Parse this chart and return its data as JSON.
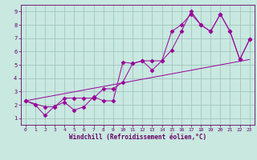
{
  "xlabel": "Windchill (Refroidissement éolien,°C)",
  "bg_color": "#c8e8e0",
  "grid_color": "#9bbfb8",
  "line_color": "#990099",
  "axis_label_color": "#660066",
  "tick_color": "#660066",
  "xlim": [
    -0.5,
    23.5
  ],
  "ylim": [
    0.5,
    9.5
  ],
  "xticks": [
    0,
    1,
    2,
    3,
    4,
    5,
    6,
    7,
    8,
    9,
    10,
    11,
    12,
    13,
    14,
    15,
    16,
    17,
    18,
    19,
    20,
    21,
    22,
    23
  ],
  "yticks": [
    1,
    2,
    3,
    4,
    5,
    6,
    7,
    8,
    9
  ],
  "line1_x": [
    0,
    1,
    2,
    3,
    4,
    5,
    6,
    7,
    8,
    9,
    10,
    11,
    12,
    13,
    14,
    15,
    16,
    17,
    18,
    19,
    20,
    21,
    22,
    23
  ],
  "line1_y": [
    2.3,
    2.0,
    1.2,
    1.9,
    2.2,
    1.6,
    1.85,
    2.6,
    2.3,
    2.3,
    5.2,
    5.1,
    5.3,
    4.6,
    5.3,
    7.5,
    8.0,
    8.8,
    8.0,
    7.5,
    8.8,
    7.5,
    5.4,
    6.9
  ],
  "line2_x": [
    0,
    2,
    3,
    4,
    5,
    6,
    7,
    8,
    9,
    10,
    11,
    12,
    13,
    14,
    15,
    16,
    17,
    18,
    19,
    20,
    21,
    22,
    23
  ],
  "line2_y": [
    2.3,
    1.85,
    1.85,
    2.5,
    2.5,
    2.5,
    2.5,
    3.2,
    3.2,
    3.7,
    5.1,
    5.3,
    5.3,
    5.3,
    6.1,
    7.5,
    9.0,
    8.0,
    7.5,
    8.8,
    7.5,
    5.4,
    6.9
  ],
  "line3_x": [
    0,
    23
  ],
  "line3_y": [
    2.3,
    5.4
  ],
  "markers_x": [
    0,
    1,
    2,
    3,
    4,
    5,
    6,
    7,
    8,
    9,
    10,
    11,
    12,
    13,
    14,
    15,
    16,
    17,
    18,
    19,
    20,
    21,
    22,
    23
  ],
  "markers_y": [
    2.3,
    2.0,
    1.2,
    1.9,
    2.2,
    1.6,
    1.85,
    2.6,
    2.3,
    2.3,
    5.2,
    5.1,
    5.3,
    4.6,
    5.3,
    7.5,
    8.0,
    8.8,
    8.0,
    7.5,
    8.8,
    7.5,
    5.4,
    6.9
  ],
  "markers2_x": [
    0,
    2,
    3,
    4,
    5,
    6,
    7,
    8,
    9,
    10,
    11,
    12,
    13,
    14,
    15,
    16,
    17,
    18,
    19,
    20,
    21,
    22,
    23
  ],
  "markers2_y": [
    2.3,
    1.85,
    1.85,
    2.5,
    2.5,
    2.5,
    2.5,
    3.2,
    3.2,
    3.7,
    5.1,
    5.3,
    5.3,
    5.3,
    6.1,
    7.5,
    9.0,
    8.0,
    7.5,
    8.8,
    7.5,
    5.4,
    6.9
  ]
}
